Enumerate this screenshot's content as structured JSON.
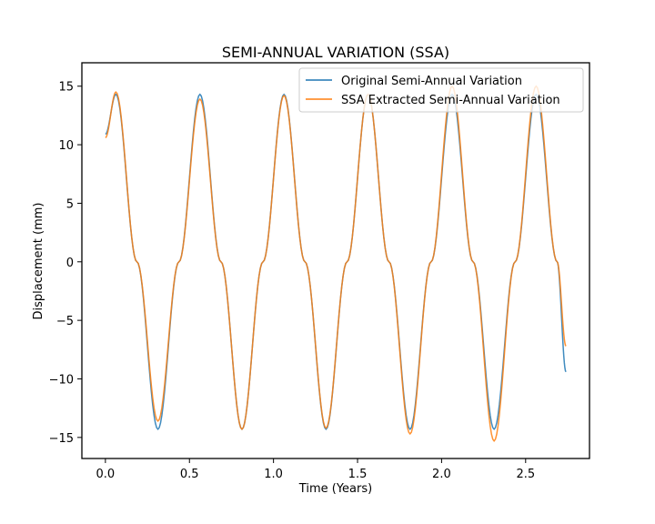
{
  "chart_data": {
    "type": "line",
    "title": "SEMI-ANNUAL VARIATION (SSA)",
    "xlabel": "Time (Years)",
    "ylabel": "Displacement (mm)",
    "xlim": [
      -0.14,
      2.88
    ],
    "ylim": [
      -16.8,
      17.0
    ],
    "xticks": [
      0.0,
      0.5,
      1.0,
      1.5,
      2.0,
      2.5
    ],
    "xtick_labels": [
      "0.0",
      "0.5",
      "1.0",
      "1.5",
      "2.0",
      "2.5"
    ],
    "yticks": [
      -15,
      -10,
      -5,
      0,
      5,
      10,
      15
    ],
    "ytick_labels": [
      "−15",
      "−10",
      "−5",
      "0",
      "5",
      "10",
      "15"
    ],
    "grid": false,
    "legend_position": "top-right",
    "series": [
      {
        "name": "Original Semi-Annual Variation",
        "color": "#1f77b4",
        "x": [
          0.0,
          0.0625,
          0.1875,
          0.3125,
          0.4375,
          0.5625,
          0.6875,
          0.8125,
          0.9375,
          1.0625,
          1.1875,
          1.3125,
          1.4375,
          1.5625,
          1.6875,
          1.8125,
          1.9375,
          2.0625,
          2.1875,
          2.3125,
          2.4375,
          2.5625,
          2.6875,
          2.74
        ],
        "y": [
          10.9,
          14.3,
          0.0,
          -14.3,
          0.0,
          14.3,
          0.0,
          -14.3,
          0.0,
          14.3,
          0.0,
          -14.3,
          0.0,
          14.3,
          0.0,
          -14.3,
          0.0,
          14.3,
          0.0,
          -14.3,
          0.0,
          14.3,
          0.0,
          -9.4
        ]
      },
      {
        "name": "SSA Extracted Semi-Annual Variation",
        "color": "#ff7f0e",
        "x": [
          0.0,
          0.0625,
          0.1875,
          0.3125,
          0.4375,
          0.5625,
          0.6875,
          0.8125,
          0.9375,
          1.0625,
          1.1875,
          1.3125,
          1.4375,
          1.5625,
          1.6875,
          1.8125,
          1.9375,
          2.0625,
          2.1875,
          2.3125,
          2.4375,
          2.5625,
          2.6875,
          2.74
        ],
        "y": [
          10.6,
          14.5,
          0.0,
          -13.6,
          0.0,
          13.9,
          0.0,
          -14.3,
          0.0,
          14.2,
          0.0,
          -14.2,
          0.0,
          14.3,
          0.0,
          -14.7,
          0.0,
          15.0,
          0.0,
          -15.3,
          0.0,
          15.0,
          0.0,
          -7.2
        ]
      }
    ]
  }
}
